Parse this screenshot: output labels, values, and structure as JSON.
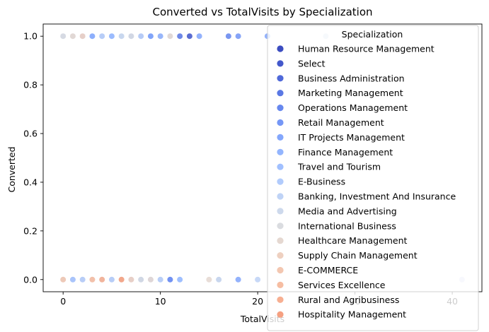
{
  "chart_data": {
    "type": "scatter",
    "title": "Converted vs TotalVisits by Specialization",
    "xlabel": "TotalVisits",
    "ylabel": "Converted",
    "xlim": [
      -2.05,
      43.05
    ],
    "ylim": [
      -0.05,
      1.05
    ],
    "xticks": [
      0,
      10,
      20,
      30,
      40
    ],
    "yticks": [
      0.0,
      0.2,
      0.4,
      0.6,
      0.8,
      1.0
    ],
    "ytick_labels": [
      "0.0",
      "0.2",
      "0.4",
      "0.6",
      "0.8",
      "1.0"
    ],
    "grid": false,
    "legend": {
      "title": "Specialization",
      "placement": "upper-right"
    },
    "series": [
      {
        "name": "Human Resource Management",
        "color": "#3b4cc0",
        "points": [
          [
            0,
            1
          ],
          [
            2,
            1
          ],
          [
            3,
            1
          ],
          [
            4,
            1
          ],
          [
            5,
            1
          ],
          [
            6,
            1
          ],
          [
            0,
            0
          ],
          [
            2,
            0
          ],
          [
            3,
            0
          ],
          [
            4,
            0
          ]
        ]
      },
      {
        "name": "Select",
        "color": "#4358cb",
        "points": [
          [
            0,
            1
          ],
          [
            2,
            1
          ],
          [
            4,
            1
          ],
          [
            6,
            1
          ],
          [
            8,
            1
          ],
          [
            10,
            1
          ],
          [
            13,
            1
          ],
          [
            0,
            0
          ],
          [
            1,
            0
          ],
          [
            2,
            0
          ],
          [
            3,
            0
          ],
          [
            4,
            0
          ],
          [
            5,
            0
          ],
          [
            7,
            0
          ],
          [
            10,
            0
          ],
          [
            11,
            0
          ]
        ]
      },
      {
        "name": "Business Administration",
        "color": "#4f69d9",
        "points": [
          [
            0,
            1
          ],
          [
            3,
            1
          ],
          [
            5,
            1
          ],
          [
            0,
            0
          ],
          [
            2,
            0
          ],
          [
            4,
            0
          ],
          [
            6,
            0
          ],
          [
            7,
            0
          ]
        ]
      },
      {
        "name": "Marketing Management",
        "color": "#5a78e4",
        "points": [
          [
            2,
            1
          ],
          [
            4,
            1
          ],
          [
            6,
            1
          ],
          [
            9,
            1
          ],
          [
            12,
            1
          ],
          [
            0,
            0
          ],
          [
            3,
            0
          ],
          [
            5,
            0
          ],
          [
            8,
            0
          ]
        ]
      },
      {
        "name": "Operations Management",
        "color": "#6788ee",
        "points": [
          [
            1,
            1
          ],
          [
            3,
            1
          ],
          [
            7,
            1
          ],
          [
            17,
            1
          ],
          [
            0,
            0
          ],
          [
            2,
            0
          ],
          [
            6,
            0
          ],
          [
            9,
            0
          ]
        ]
      },
      {
        "name": "Retail Management",
        "color": "#7597f6",
        "points": [
          [
            5,
            1
          ],
          [
            8,
            1
          ],
          [
            18,
            1
          ],
          [
            1,
            0
          ],
          [
            4,
            0
          ],
          [
            11,
            0
          ]
        ]
      },
      {
        "name": "IT Projects Management",
        "color": "#84a7fc",
        "points": [
          [
            2,
            1
          ],
          [
            4,
            1
          ],
          [
            9,
            1
          ],
          [
            14,
            1
          ],
          [
            21,
            1
          ],
          [
            2,
            0
          ],
          [
            5,
            0
          ],
          [
            12,
            0
          ],
          [
            18,
            0
          ]
        ]
      },
      {
        "name": "Finance Management",
        "color": "#93b5fe",
        "points": [
          [
            0,
            1
          ],
          [
            3,
            1
          ],
          [
            7,
            1
          ],
          [
            11,
            1
          ],
          [
            0,
            0
          ],
          [
            3,
            0
          ],
          [
            8,
            0
          ],
          [
            10,
            0
          ],
          [
            16,
            0
          ]
        ]
      },
      {
        "name": "Travel and Tourism",
        "color": "#a1c0ff",
        "points": [
          [
            1,
            1
          ],
          [
            5,
            1
          ],
          [
            10,
            1
          ],
          [
            0,
            0
          ],
          [
            6,
            0
          ],
          [
            12,
            0
          ]
        ]
      },
      {
        "name": "E-Business",
        "color": "#b1cbfc",
        "points": [
          [
            2,
            1
          ],
          [
            6,
            1
          ],
          [
            1,
            0
          ],
          [
            9,
            0
          ]
        ]
      },
      {
        "name": "Banking, Investment And Insurance",
        "color": "#bfd3f6",
        "points": [
          [
            0,
            1
          ],
          [
            4,
            1
          ],
          [
            8,
            1
          ],
          [
            11,
            1
          ],
          [
            2,
            0
          ],
          [
            5,
            0
          ],
          [
            7,
            0
          ],
          [
            10,
            0
          ],
          [
            20,
            0
          ]
        ]
      },
      {
        "name": "Media and Advertising",
        "color": "#cdd9ec",
        "points": [
          [
            1,
            1
          ],
          [
            6,
            1
          ],
          [
            27,
            1
          ],
          [
            0,
            0
          ],
          [
            4,
            0
          ],
          [
            16,
            0
          ]
        ]
      },
      {
        "name": "International Business",
        "color": "#dadce0",
        "points": [
          [
            0,
            1
          ],
          [
            7,
            1
          ],
          [
            3,
            0
          ],
          [
            8,
            0
          ]
        ]
      },
      {
        "name": "Healthcare Management",
        "color": "#e5d8d1",
        "points": [
          [
            1,
            1
          ],
          [
            11,
            1
          ],
          [
            6,
            0
          ],
          [
            9,
            0
          ],
          [
            15,
            0
          ]
        ]
      },
      {
        "name": "Supply Chain Management",
        "color": "#eed0c0",
        "points": [
          [
            2,
            1
          ],
          [
            7,
            0
          ]
        ]
      },
      {
        "name": "E-COMMERCE",
        "color": "#f3c7b1",
        "points": [
          [
            0,
            0
          ]
        ]
      },
      {
        "name": "Services Excellence",
        "color": "#f6bda2",
        "points": [
          [
            3,
            0
          ]
        ]
      },
      {
        "name": "Rural and Agribusiness",
        "color": "#f7af91",
        "points": [
          [
            4,
            0
          ]
        ]
      },
      {
        "name": "Hospitality Management",
        "color": "#f5a081",
        "points": [
          [
            6,
            0
          ]
        ]
      },
      {
        "name": "",
        "color": "#f18f71",
        "points": []
      },
      {
        "name": "",
        "color": "#e97a5f",
        "points": []
      },
      {
        "name": "",
        "color": "#e0654f",
        "points": []
      },
      {
        "name": "",
        "color": "#d24b40",
        "points": []
      },
      {
        "name": "",
        "color": "#c0282f",
        "points": []
      }
    ],
    "extra_points": [
      {
        "x": 41,
        "y": 0,
        "color": "#3b4cc0"
      }
    ]
  }
}
